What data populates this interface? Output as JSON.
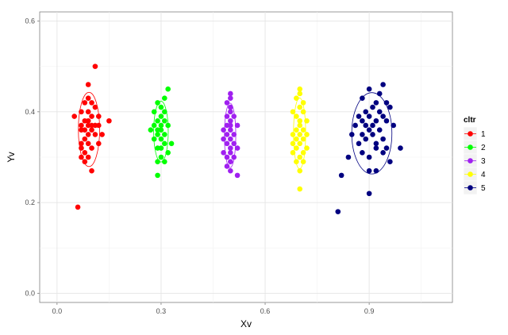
{
  "chart_data": {
    "type": "scatter",
    "title": "",
    "xlabel": "Xv",
    "ylabel": "Yv",
    "xlim": [
      -0.05,
      1.14
    ],
    "ylim": [
      -0.02,
      0.62
    ],
    "x_ticks": [
      "0.0",
      "0.3",
      "0.6",
      "0.9"
    ],
    "x_tick_values": [
      0.0,
      0.3,
      0.6,
      0.9
    ],
    "y_ticks": [
      "0.0",
      "0.2",
      "0.4",
      "0.6"
    ],
    "y_tick_values": [
      0.0,
      0.2,
      0.4,
      0.6
    ],
    "grid": true,
    "legend": {
      "title": "cltr",
      "placement": "right"
    },
    "ellipses": true,
    "series": [
      {
        "name": "1",
        "color": "#ff0000",
        "points": [
          [
            0.11,
            0.5
          ],
          [
            0.09,
            0.46
          ],
          [
            0.09,
            0.43
          ],
          [
            0.08,
            0.42
          ],
          [
            0.1,
            0.42
          ],
          [
            0.11,
            0.41
          ],
          [
            0.09,
            0.4
          ],
          [
            0.07,
            0.4
          ],
          [
            0.05,
            0.39
          ],
          [
            0.1,
            0.39
          ],
          [
            0.12,
            0.39
          ],
          [
            0.09,
            0.38
          ],
          [
            0.15,
            0.38
          ],
          [
            0.08,
            0.38
          ],
          [
            0.07,
            0.37
          ],
          [
            0.09,
            0.37
          ],
          [
            0.11,
            0.37
          ],
          [
            0.1,
            0.37
          ],
          [
            0.12,
            0.37
          ],
          [
            0.07,
            0.36
          ],
          [
            0.08,
            0.36
          ],
          [
            0.1,
            0.36
          ],
          [
            0.09,
            0.35
          ],
          [
            0.11,
            0.35
          ],
          [
            0.08,
            0.34
          ],
          [
            0.13,
            0.35
          ],
          [
            0.07,
            0.33
          ],
          [
            0.09,
            0.33
          ],
          [
            0.07,
            0.32
          ],
          [
            0.1,
            0.32
          ],
          [
            0.08,
            0.31
          ],
          [
            0.12,
            0.33
          ],
          [
            0.09,
            0.3
          ],
          [
            0.08,
            0.29
          ],
          [
            0.07,
            0.3
          ],
          [
            0.1,
            0.27
          ],
          [
            0.06,
            0.19
          ]
        ]
      },
      {
        "name": "2",
        "color": "#00ff00",
        "points": [
          [
            0.32,
            0.45
          ],
          [
            0.31,
            0.43
          ],
          [
            0.29,
            0.42
          ],
          [
            0.3,
            0.41
          ],
          [
            0.28,
            0.4
          ],
          [
            0.31,
            0.4
          ],
          [
            0.3,
            0.39
          ],
          [
            0.29,
            0.38
          ],
          [
            0.31,
            0.38
          ],
          [
            0.3,
            0.37
          ],
          [
            0.28,
            0.37
          ],
          [
            0.32,
            0.37
          ],
          [
            0.29,
            0.36
          ],
          [
            0.27,
            0.36
          ],
          [
            0.3,
            0.36
          ],
          [
            0.31,
            0.35
          ],
          [
            0.29,
            0.35
          ],
          [
            0.28,
            0.34
          ],
          [
            0.3,
            0.34
          ],
          [
            0.31,
            0.33
          ],
          [
            0.33,
            0.33
          ],
          [
            0.3,
            0.32
          ],
          [
            0.29,
            0.32
          ],
          [
            0.32,
            0.31
          ],
          [
            0.3,
            0.3
          ],
          [
            0.29,
            0.29
          ],
          [
            0.31,
            0.29
          ],
          [
            0.29,
            0.26
          ]
        ]
      },
      {
        "name": "3",
        "color": "#a020f0",
        "points": [
          [
            0.5,
            0.44
          ],
          [
            0.5,
            0.43
          ],
          [
            0.49,
            0.42
          ],
          [
            0.5,
            0.41
          ],
          [
            0.5,
            0.4
          ],
          [
            0.49,
            0.39
          ],
          [
            0.51,
            0.39
          ],
          [
            0.5,
            0.38
          ],
          [
            0.49,
            0.37
          ],
          [
            0.5,
            0.37
          ],
          [
            0.52,
            0.37
          ],
          [
            0.48,
            0.36
          ],
          [
            0.5,
            0.36
          ],
          [
            0.51,
            0.35
          ],
          [
            0.49,
            0.35
          ],
          [
            0.5,
            0.34
          ],
          [
            0.48,
            0.34
          ],
          [
            0.51,
            0.33
          ],
          [
            0.49,
            0.33
          ],
          [
            0.5,
            0.32
          ],
          [
            0.52,
            0.32
          ],
          [
            0.48,
            0.31
          ],
          [
            0.5,
            0.31
          ],
          [
            0.49,
            0.3
          ],
          [
            0.51,
            0.3
          ],
          [
            0.5,
            0.29
          ],
          [
            0.49,
            0.28
          ],
          [
            0.5,
            0.27
          ],
          [
            0.52,
            0.26
          ]
        ]
      },
      {
        "name": "4",
        "color": "#ffff00",
        "points": [
          [
            0.7,
            0.45
          ],
          [
            0.7,
            0.44
          ],
          [
            0.69,
            0.43
          ],
          [
            0.71,
            0.42
          ],
          [
            0.7,
            0.41
          ],
          [
            0.68,
            0.4
          ],
          [
            0.71,
            0.4
          ],
          [
            0.69,
            0.39
          ],
          [
            0.7,
            0.38
          ],
          [
            0.72,
            0.38
          ],
          [
            0.7,
            0.37
          ],
          [
            0.69,
            0.36
          ],
          [
            0.71,
            0.36
          ],
          [
            0.7,
            0.35
          ],
          [
            0.68,
            0.35
          ],
          [
            0.72,
            0.35
          ],
          [
            0.69,
            0.34
          ],
          [
            0.71,
            0.34
          ],
          [
            0.7,
            0.33
          ],
          [
            0.68,
            0.33
          ],
          [
            0.72,
            0.32
          ],
          [
            0.69,
            0.32
          ],
          [
            0.71,
            0.31
          ],
          [
            0.68,
            0.31
          ],
          [
            0.7,
            0.3
          ],
          [
            0.69,
            0.29
          ],
          [
            0.71,
            0.29
          ],
          [
            0.7,
            0.27
          ],
          [
            0.7,
            0.23
          ]
        ]
      },
      {
        "name": "5",
        "color": "#000080",
        "points": [
          [
            0.94,
            0.46
          ],
          [
            0.9,
            0.45
          ],
          [
            0.93,
            0.44
          ],
          [
            0.88,
            0.43
          ],
          [
            0.92,
            0.42
          ],
          [
            0.95,
            0.42
          ],
          [
            0.91,
            0.41
          ],
          [
            0.89,
            0.4
          ],
          [
            0.96,
            0.41
          ],
          [
            0.93,
            0.4
          ],
          [
            0.87,
            0.39
          ],
          [
            0.9,
            0.39
          ],
          [
            0.94,
            0.39
          ],
          [
            0.88,
            0.38
          ],
          [
            0.92,
            0.38
          ],
          [
            0.95,
            0.38
          ],
          [
            0.86,
            0.37
          ],
          [
            0.89,
            0.37
          ],
          [
            0.91,
            0.37
          ],
          [
            0.97,
            0.37
          ],
          [
            0.9,
            0.36
          ],
          [
            0.93,
            0.36
          ],
          [
            0.88,
            0.35
          ],
          [
            0.85,
            0.35
          ],
          [
            0.91,
            0.35
          ],
          [
            0.94,
            0.34
          ],
          [
            0.89,
            0.34
          ],
          [
            0.92,
            0.33
          ],
          [
            0.87,
            0.33
          ],
          [
            0.95,
            0.32
          ],
          [
            0.99,
            0.32
          ],
          [
            0.92,
            0.32
          ],
          [
            0.88,
            0.31
          ],
          [
            0.94,
            0.31
          ],
          [
            0.84,
            0.3
          ],
          [
            0.9,
            0.3
          ],
          [
            0.96,
            0.29
          ],
          [
            0.9,
            0.27
          ],
          [
            0.92,
            0.27
          ],
          [
            0.82,
            0.26
          ],
          [
            0.9,
            0.22
          ],
          [
            0.81,
            0.18
          ]
        ]
      }
    ]
  }
}
